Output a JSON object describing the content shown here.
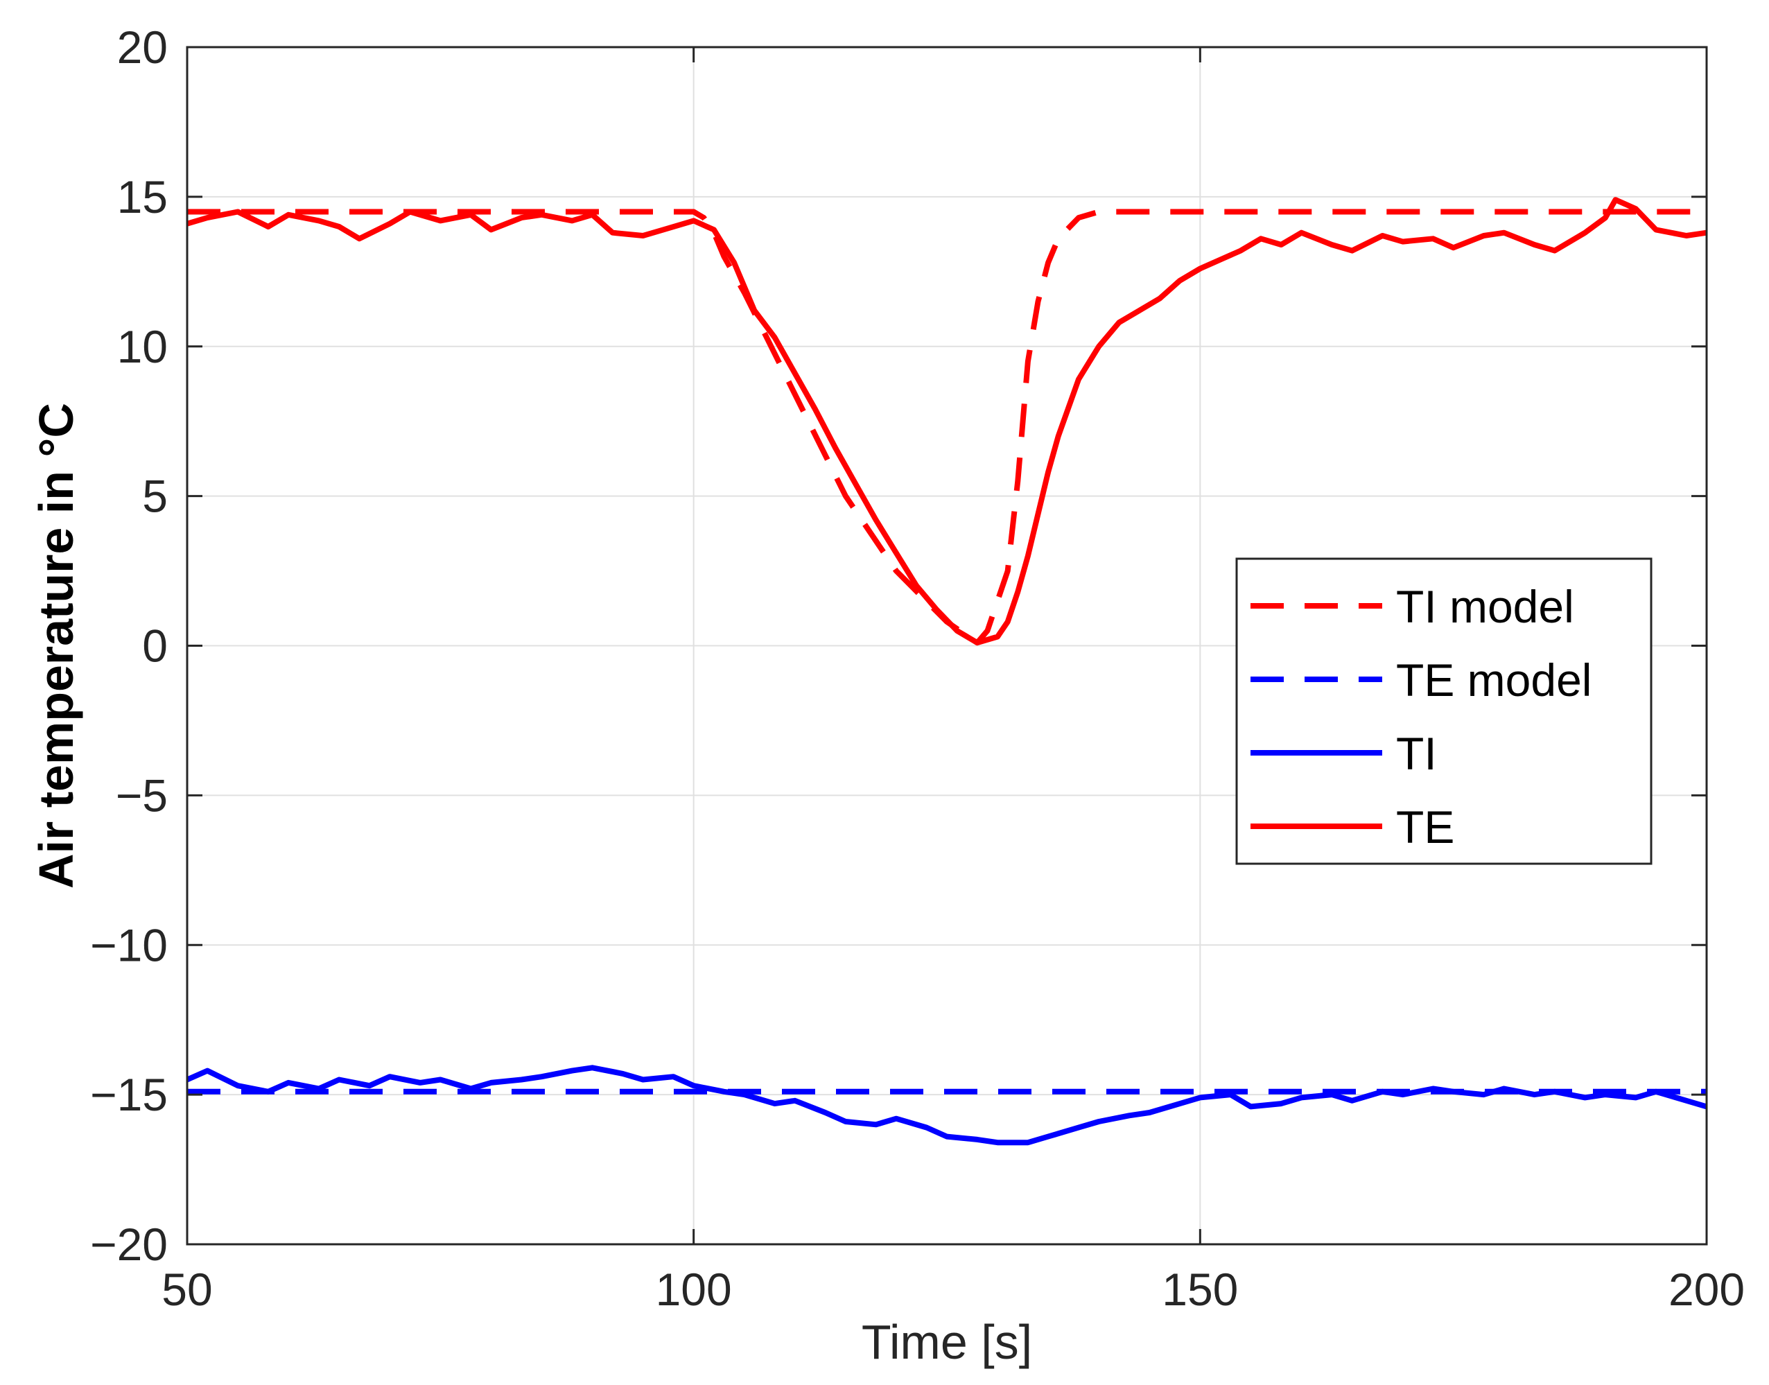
{
  "chart_data": {
    "type": "line",
    "title": "",
    "xlabel": "Time [s]",
    "ylabel": "Air temperature in °C",
    "xlim": [
      50,
      200
    ],
    "ylim": [
      -20,
      20
    ],
    "xticks": [
      50,
      100,
      150,
      200
    ],
    "yticks": [
      20,
      15,
      10,
      5,
      0,
      -5,
      -10,
      -15,
      -20
    ],
    "grid": true,
    "legend_position": "right-center",
    "series": [
      {
        "name": "TI model",
        "color": "#ff0000",
        "style": "dashed",
        "x": [
          50,
          100,
          101,
          102,
          103,
          105,
          110,
          115,
          120,
          125,
          128,
          129,
          130,
          131,
          132,
          133,
          134,
          135,
          136,
          138,
          140,
          150,
          200
        ],
        "y": [
          14.5,
          14.5,
          14.3,
          13.8,
          13.0,
          11.8,
          8.4,
          5.0,
          2.5,
          0.8,
          0.1,
          0.5,
          1.5,
          2.5,
          5.5,
          9.5,
          11.5,
          12.8,
          13.6,
          14.3,
          14.5,
          14.5,
          14.5
        ]
      },
      {
        "name": "TE model",
        "color": "#0000ff",
        "style": "dashed",
        "x": [
          50,
          200
        ],
        "y": [
          -14.9,
          -14.9
        ]
      },
      {
        "name": "TI",
        "color": "#0000ff",
        "style": "solid",
        "x": [
          50,
          52,
          55,
          58,
          60,
          63,
          65,
          68,
          70,
          73,
          75,
          78,
          80,
          83,
          85,
          88,
          90,
          93,
          95,
          98,
          100,
          103,
          105,
          108,
          110,
          113,
          115,
          118,
          120,
          123,
          125,
          128,
          130,
          133,
          135,
          138,
          140,
          143,
          145,
          148,
          150,
          153,
          155,
          158,
          160,
          163,
          165,
          168,
          170,
          173,
          175,
          178,
          180,
          183,
          185,
          188,
          190,
          193,
          195,
          198,
          200
        ],
        "y": [
          -14.5,
          -14.2,
          -14.7,
          -14.9,
          -14.6,
          -14.8,
          -14.5,
          -14.7,
          -14.4,
          -14.6,
          -14.5,
          -14.8,
          -14.6,
          -14.5,
          -14.4,
          -14.2,
          -14.1,
          -14.3,
          -14.5,
          -14.4,
          -14.7,
          -14.9,
          -15.0,
          -15.3,
          -15.2,
          -15.6,
          -15.9,
          -16.0,
          -15.8,
          -16.1,
          -16.4,
          -16.5,
          -16.6,
          -16.6,
          -16.4,
          -16.1,
          -15.9,
          -15.7,
          -15.6,
          -15.3,
          -15.1,
          -15.0,
          -15.4,
          -15.3,
          -15.1,
          -15.0,
          -15.2,
          -14.9,
          -15.0,
          -14.8,
          -14.9,
          -15.0,
          -14.8,
          -15.0,
          -14.9,
          -15.1,
          -15.0,
          -15.1,
          -14.9,
          -15.2,
          -15.4
        ]
      },
      {
        "name": "TE",
        "color": "#ff0000",
        "style": "solid",
        "x": [
          50,
          52,
          55,
          58,
          60,
          63,
          65,
          67,
          70,
          72,
          75,
          78,
          80,
          83,
          85,
          88,
          90,
          92,
          95,
          97,
          100,
          102,
          104,
          106,
          108,
          110,
          112,
          114,
          116,
          118,
          120,
          122,
          124,
          126,
          128,
          130,
          131,
          132,
          133,
          134,
          135,
          136,
          138,
          140,
          142,
          144,
          146,
          148,
          150,
          152,
          154,
          156,
          158,
          160,
          163,
          165,
          168,
          170,
          173,
          175,
          178,
          180,
          183,
          185,
          188,
          190,
          191,
          193,
          195,
          198,
          200
        ],
        "y": [
          14.1,
          14.3,
          14.5,
          14.0,
          14.4,
          14.2,
          14.0,
          13.6,
          14.1,
          14.5,
          14.2,
          14.4,
          13.9,
          14.3,
          14.4,
          14.2,
          14.4,
          13.8,
          13.7,
          13.9,
          14.2,
          13.9,
          12.8,
          11.2,
          10.3,
          9.1,
          7.9,
          6.6,
          5.4,
          4.2,
          3.1,
          2.0,
          1.2,
          0.5,
          0.1,
          0.3,
          0.8,
          1.8,
          3.0,
          4.4,
          5.8,
          7.0,
          8.9,
          10.0,
          10.8,
          11.2,
          11.6,
          12.2,
          12.6,
          12.9,
          13.2,
          13.6,
          13.4,
          13.8,
          13.4,
          13.2,
          13.7,
          13.5,
          13.6,
          13.3,
          13.7,
          13.8,
          13.4,
          13.2,
          13.8,
          14.3,
          14.9,
          14.6,
          13.9,
          13.7,
          13.8
        ]
      }
    ]
  }
}
